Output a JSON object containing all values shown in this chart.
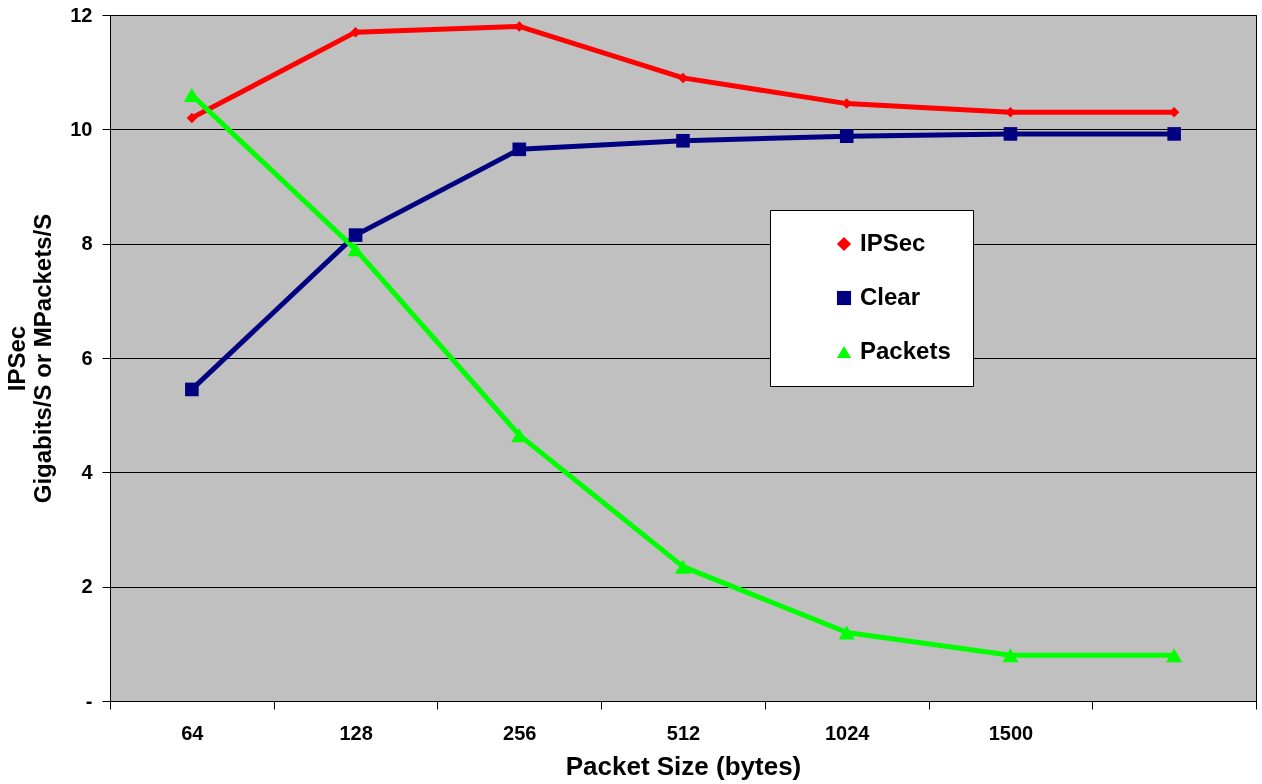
{
  "chart_data": {
    "type": "line",
    "xlabel": "Packet Size (bytes)",
    "ylabel": "IPSec\nGigabits/S or MPackets/S",
    "categories": [
      "64",
      "128",
      "256",
      "512",
      "1024",
      "1500",
      null
    ],
    "series": [
      {
        "name": "IPSec",
        "color": "#ff0000",
        "marker": "diamond",
        "values": [
          10.2,
          11.7,
          11.8,
          10.9,
          10.45,
          10.3,
          10.3
        ]
      },
      {
        "name": "Clear",
        "color": "#000080",
        "marker": "square",
        "values": [
          5.45,
          8.15,
          9.65,
          9.8,
          9.88,
          9.92,
          9.92
        ]
      },
      {
        "name": "Packets",
        "color": "#00ff00",
        "marker": "triangle",
        "values": [
          10.6,
          7.9,
          4.65,
          2.35,
          1.2,
          0.8,
          0.8
        ]
      }
    ],
    "ylim": [
      0,
      12
    ],
    "yticks": [
      {
        "value": 0,
        "label": "-"
      },
      2,
      4,
      6,
      8,
      10,
      12
    ],
    "grid": "y",
    "legend": "right"
  }
}
